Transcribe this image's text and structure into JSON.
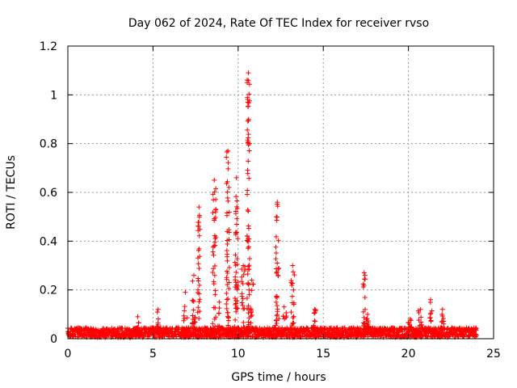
{
  "chart_data": {
    "type": "scatter",
    "title": "Day 062 of 2024, Rate Of TEC Index for receiver rvso",
    "xlabel": "GPS time / hours",
    "ylabel": "ROTI / TECUs",
    "xlim": [
      0,
      25
    ],
    "ylim": [
      0,
      1.2
    ],
    "x_ticks": [
      "0",
      "5",
      "10",
      "15",
      "20",
      "25"
    ],
    "y_ticks": [
      "0",
      "0.2",
      "0.4",
      "0.6",
      "0.8",
      "1",
      "1.2"
    ],
    "grid": true,
    "marker": "plus",
    "color": "#ff0000",
    "baseline": {
      "x_start": 0,
      "x_end": 24,
      "y_low": 0.005,
      "y_high": 0.045
    },
    "bursts": [
      {
        "x": 4.1,
        "x_width": 0.15,
        "y_max": 0.09
      },
      {
        "x": 5.3,
        "x_width": 0.15,
        "y_max": 0.12
      },
      {
        "x": 6.9,
        "x_width": 0.25,
        "y_max": 0.19
      },
      {
        "x": 7.4,
        "x_width": 0.2,
        "y_max": 0.26
      },
      {
        "x": 7.7,
        "x_width": 0.15,
        "y_max": 0.54
      },
      {
        "x": 8.6,
        "x_width": 0.2,
        "y_max": 0.65
      },
      {
        "x": 8.9,
        "x_width": 0.2,
        "y_max": 0.15
      },
      {
        "x": 9.4,
        "x_width": 0.2,
        "y_max": 0.77
      },
      {
        "x": 9.9,
        "x_width": 0.2,
        "y_max": 0.66
      },
      {
        "x": 10.3,
        "x_width": 0.2,
        "y_max": 0.3
      },
      {
        "x": 10.6,
        "x_width": 0.15,
        "y_max": 1.09
      },
      {
        "x": 10.8,
        "x_width": 0.2,
        "y_max": 0.24
      },
      {
        "x": 12.3,
        "x_width": 0.2,
        "y_max": 0.56
      },
      {
        "x": 12.7,
        "x_width": 0.3,
        "y_max": 0.13
      },
      {
        "x": 13.2,
        "x_width": 0.2,
        "y_max": 0.3
      },
      {
        "x": 14.5,
        "x_width": 0.15,
        "y_max": 0.12
      },
      {
        "x": 17.4,
        "x_width": 0.15,
        "y_max": 0.27
      },
      {
        "x": 17.6,
        "x_width": 0.15,
        "y_max": 0.1
      },
      {
        "x": 20.1,
        "x_width": 0.25,
        "y_max": 0.08
      },
      {
        "x": 20.7,
        "x_width": 0.25,
        "y_max": 0.12
      },
      {
        "x": 21.3,
        "x_width": 0.2,
        "y_max": 0.16
      },
      {
        "x": 22.0,
        "x_width": 0.25,
        "y_max": 0.12
      }
    ]
  }
}
